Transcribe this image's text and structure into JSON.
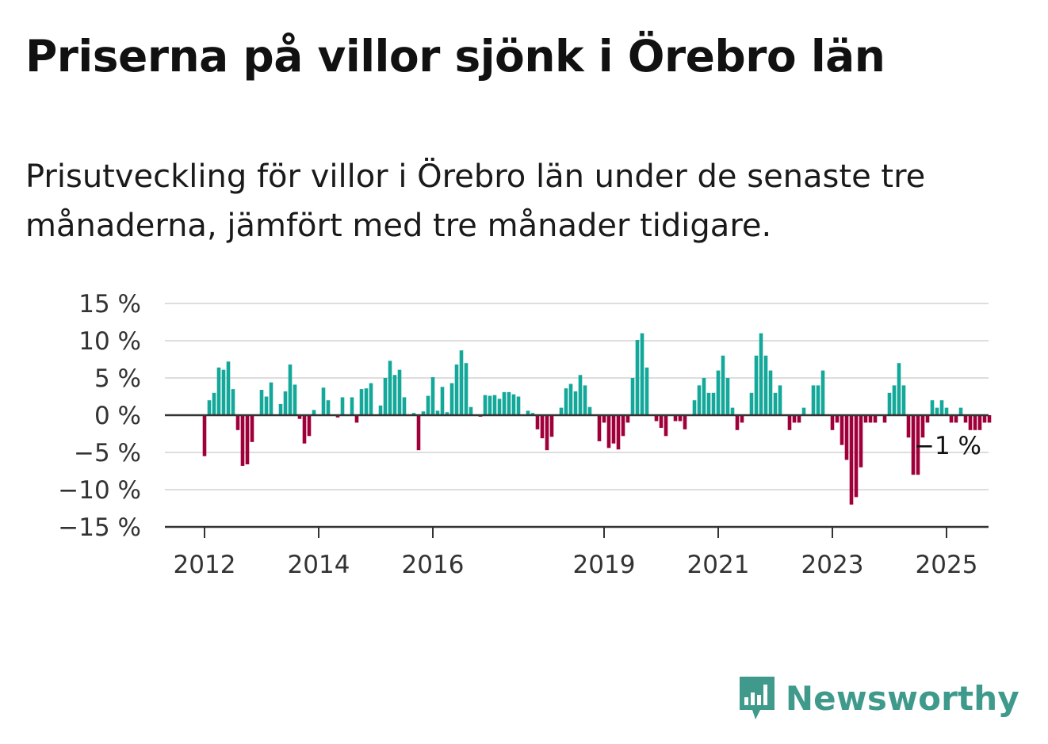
{
  "title": "Priserna på villor sjönk i Örebro län",
  "subtitle": "Prisutveckling för villor i Örebro län under de senaste tre månaderna, jämfört med tre månader tidigare.",
  "brand": {
    "name": "Newsworthy",
    "icon": "newsworthy-logo-icon",
    "color": "#3f9a8c"
  },
  "colors": {
    "positive": "#13a89a",
    "negative": "#a0003a",
    "grid": "#dddddd",
    "axis": "#333333"
  },
  "chart_data": {
    "type": "bar",
    "unit": "%",
    "ylim": [
      -15,
      15
    ],
    "yticks": [
      15,
      10,
      5,
      0,
      -5,
      -10,
      -15
    ],
    "ytick_labels": [
      "15 %",
      "10 %",
      "5 %",
      "0 %",
      "−5 %",
      "−10 %",
      "−15 %"
    ],
    "xticks": [
      "2012",
      "2014",
      "2016",
      "2019",
      "2021",
      "2023",
      "2025"
    ],
    "grid": true,
    "last_value_label": "−1 %",
    "start": "2012-01",
    "frequency": "monthly",
    "values": [
      -5.5,
      2,
      3,
      6.4,
      6.1,
      7.2,
      3.5,
      -2,
      -6.8,
      -6.6,
      -3.6,
      null,
      3.4,
      2.5,
      4.4,
      null,
      1.5,
      3.2,
      6.8,
      4.1,
      -0.5,
      -3.8,
      -2.8,
      0.7,
      null,
      3.7,
      2,
      null,
      -0.3,
      2.4,
      null,
      2.4,
      -1,
      3.5,
      3.6,
      4.3,
      null,
      1.3,
      5,
      7.3,
      5.4,
      6.1,
      2.4,
      null,
      0.3,
      -4.7,
      0.5,
      2.6,
      5.1,
      0.6,
      3.8,
      0.4,
      4.3,
      6.8,
      8.7,
      7,
      1.1,
      null,
      -0.2,
      2.7,
      2.6,
      2.7,
      2.2,
      3.1,
      3.1,
      2.8,
      2.5,
      null,
      0.6,
      0.3,
      -1.9,
      -3.1,
      -4.7,
      -2.9,
      null,
      1,
      3.6,
      4.2,
      3.2,
      5.4,
      4,
      1.1,
      null,
      -3.5,
      -1,
      -4.4,
      -3.8,
      -4.6,
      -2.8,
      -1,
      5,
      10.1,
      11,
      6.4,
      null,
      -0.8,
      -1.7,
      -2.8,
      null,
      -0.8,
      -0.8,
      -1.9,
      null,
      2,
      4,
      5,
      3,
      3,
      6,
      8,
      5,
      1,
      -2,
      -1,
      null,
      3,
      8,
      11,
      8,
      6,
      3,
      4,
      null,
      -2,
      -1,
      -1,
      1,
      null,
      4,
      4,
      6,
      null,
      -2,
      -1,
      -4,
      -6,
      -12,
      -11,
      -7,
      -1,
      -1,
      -1,
      null,
      -1,
      3,
      4,
      7,
      4,
      -3,
      -8,
      -8,
      -3,
      -1,
      2,
      1,
      2,
      1,
      -1,
      -1,
      1,
      -1,
      -2,
      -2,
      -2,
      -1,
      -1
    ]
  }
}
